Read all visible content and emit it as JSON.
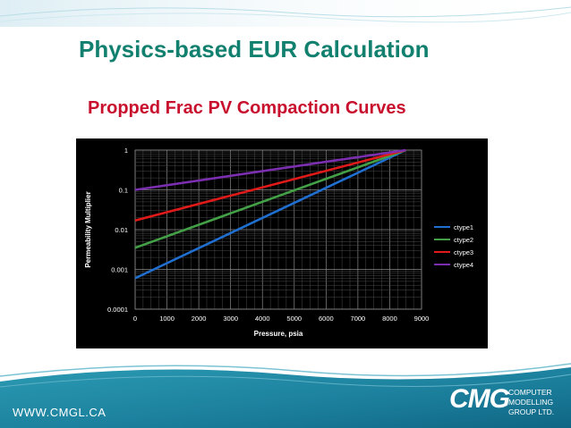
{
  "slide": {
    "title": "Physics-based EUR Calculation",
    "subtitle": "Propped Frac PV Compaction Curves",
    "footer_url": "WWW.CMGL.CA",
    "logo": {
      "mark": "CMG",
      "lines": [
        "COMPUTER",
        "MODELLING",
        "GROUP LTD."
      ]
    }
  },
  "colors": {
    "title": "#11806f",
    "subtitle": "#c8102e",
    "chart_background": "#000000",
    "chart_foreground": "#ffffff"
  },
  "chart_data": {
    "type": "line",
    "title": "",
    "xlabel": "Pressure, psia",
    "ylabel": "Permeability Multiplier",
    "xlim": [
      0,
      9000
    ],
    "ylim": [
      0.0001,
      1
    ],
    "yscale": "log",
    "xticks": [
      "0",
      "1000",
      "2000",
      "3000",
      "4000",
      "5000",
      "6000",
      "7000",
      "8000",
      "9000"
    ],
    "yticks": [
      "0.0001",
      "0.001",
      "0.01",
      "0.1",
      "1"
    ],
    "grid": true,
    "legend": "right",
    "series": [
      {
        "name": "ctype1",
        "color": "#1f6fd0",
        "x": [
          0,
          8500
        ],
        "y": [
          0.0006,
          1
        ]
      },
      {
        "name": "ctype2",
        "color": "#43a047",
        "x": [
          0,
          8500
        ],
        "y": [
          0.0035,
          1
        ]
      },
      {
        "name": "ctype3",
        "color": "#e01919",
        "x": [
          0,
          8500
        ],
        "y": [
          0.017,
          1
        ]
      },
      {
        "name": "ctype4",
        "color": "#7b2fb0",
        "x": [
          0,
          8500
        ],
        "y": [
          0.1,
          1
        ]
      }
    ]
  }
}
